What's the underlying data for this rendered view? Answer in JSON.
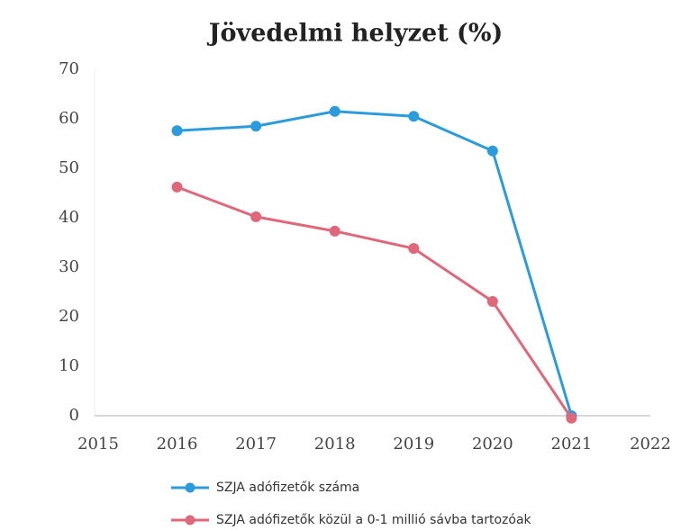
{
  "chart_data": {
    "type": "line",
    "title": "Jövedelmi helyzet (%)",
    "x": [
      2016,
      2017,
      2018,
      2019,
      2020,
      2021
    ],
    "series": [
      {
        "name": "SZJA adófizetők száma",
        "color": "#2b9bdb",
        "values": [
          57.6,
          58.5,
          61.5,
          60.5,
          53.5,
          0
        ]
      },
      {
        "name": "SZJA adófizetők közül a 0-1 millió sávba tartozóak",
        "color": "#e0677a",
        "values": [
          46.2,
          40.2,
          37.3,
          33.8,
          23.1,
          -0.5
        ]
      }
    ],
    "xlim": [
      2015,
      2022
    ],
    "xticks": [
      2015,
      2016,
      2017,
      2018,
      2019,
      2020,
      2021,
      2022
    ],
    "ylim": [
      0,
      70
    ],
    "yticks": [
      0,
      10,
      20,
      30,
      40,
      50,
      60,
      70
    ],
    "legend": "bottom"
  }
}
